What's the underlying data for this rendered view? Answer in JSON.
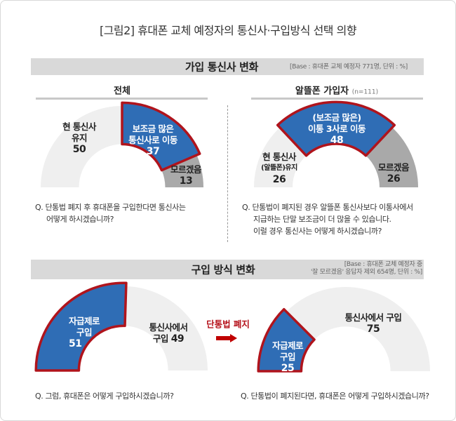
{
  "title": "[그림2] 휴대폰 교체 예정자의 통신사·구입방식 선택 의향",
  "section1": {
    "title": "가입 통신사 변화",
    "base": "[Base : 휴대폰 교체 예정자 771명, 단위 : %]",
    "left_sub": "전체",
    "right_sub": "알뜰폰 가입자",
    "right_sub_n": "(n=111)",
    "q_left": [
      "Q. 단통법 폐지 후 휴대폰을 구입한다면 통신사는",
      "어떻게 하시겠습니까?"
    ],
    "q_right": [
      "Q. 단통법이 폐지된 경우 알뜰폰 통신사보다 이통사에서",
      "지급하는 단말 보조금이 더 많을 수 있습니다.",
      "이럴 경우 통신사는 어떻게 하시겠습니까?"
    ]
  },
  "section2": {
    "title": "구입 방식 변화",
    "base": [
      "[Base : 휴대폰 교체 예정자 중",
      "'잘 모르겠음' 응답자 제외 654명, 단위 : %]"
    ],
    "arrow_label": "단통법 폐지",
    "q_left": "Q. 그럼, 휴대폰은 어떻게 구입하시겠습니까?",
    "q_right": "Q. 단통법이 폐지된다면, 휴대폰은 어떻게 구입하시겠습니까?"
  },
  "colors": {
    "highlight": "#2f6db5",
    "highlight_border": "#b0141c",
    "light": "#efefef",
    "mid": "#a9a9a9"
  },
  "chart_data": [
    {
      "type": "pie",
      "subtype": "semi-donut",
      "title": "전체",
      "unit": "%",
      "slices": [
        {
          "label": [
            "현 통신사",
            "유지"
          ],
          "value": 50,
          "color": "light"
        },
        {
          "label": [
            "보조금 많은",
            "통신사로 이동"
          ],
          "value": 37,
          "color": "highlight"
        },
        {
          "label": [
            "모르겠음"
          ],
          "value": 13,
          "color": "mid"
        }
      ]
    },
    {
      "type": "pie",
      "subtype": "semi-donut",
      "title": "알뜰폰 가입자 (n=111)",
      "unit": "%",
      "slices": [
        {
          "label": [
            "현 통신사",
            "(알뜰폰)유지"
          ],
          "value": 26,
          "color": "light"
        },
        {
          "label": [
            "(보조금 많은)",
            "이통 3사로 이동"
          ],
          "value": 48,
          "color": "highlight"
        },
        {
          "label": [
            "모르겠음"
          ],
          "value": 26,
          "color": "mid"
        }
      ]
    },
    {
      "type": "pie",
      "subtype": "semi-donut",
      "unit": "%",
      "slices": [
        {
          "label": [
            "자급제로",
            "구입"
          ],
          "value": 51,
          "color": "highlight"
        },
        {
          "label": [
            "통신사에서",
            "구입"
          ],
          "value": 49,
          "color": "light"
        }
      ]
    },
    {
      "type": "pie",
      "subtype": "semi-donut",
      "unit": "%",
      "slices": [
        {
          "label": [
            "자급제로",
            "구입"
          ],
          "value": 25,
          "color": "highlight"
        },
        {
          "label": [
            "통신사에서 구입"
          ],
          "value": 75,
          "color": "light"
        }
      ]
    }
  ]
}
